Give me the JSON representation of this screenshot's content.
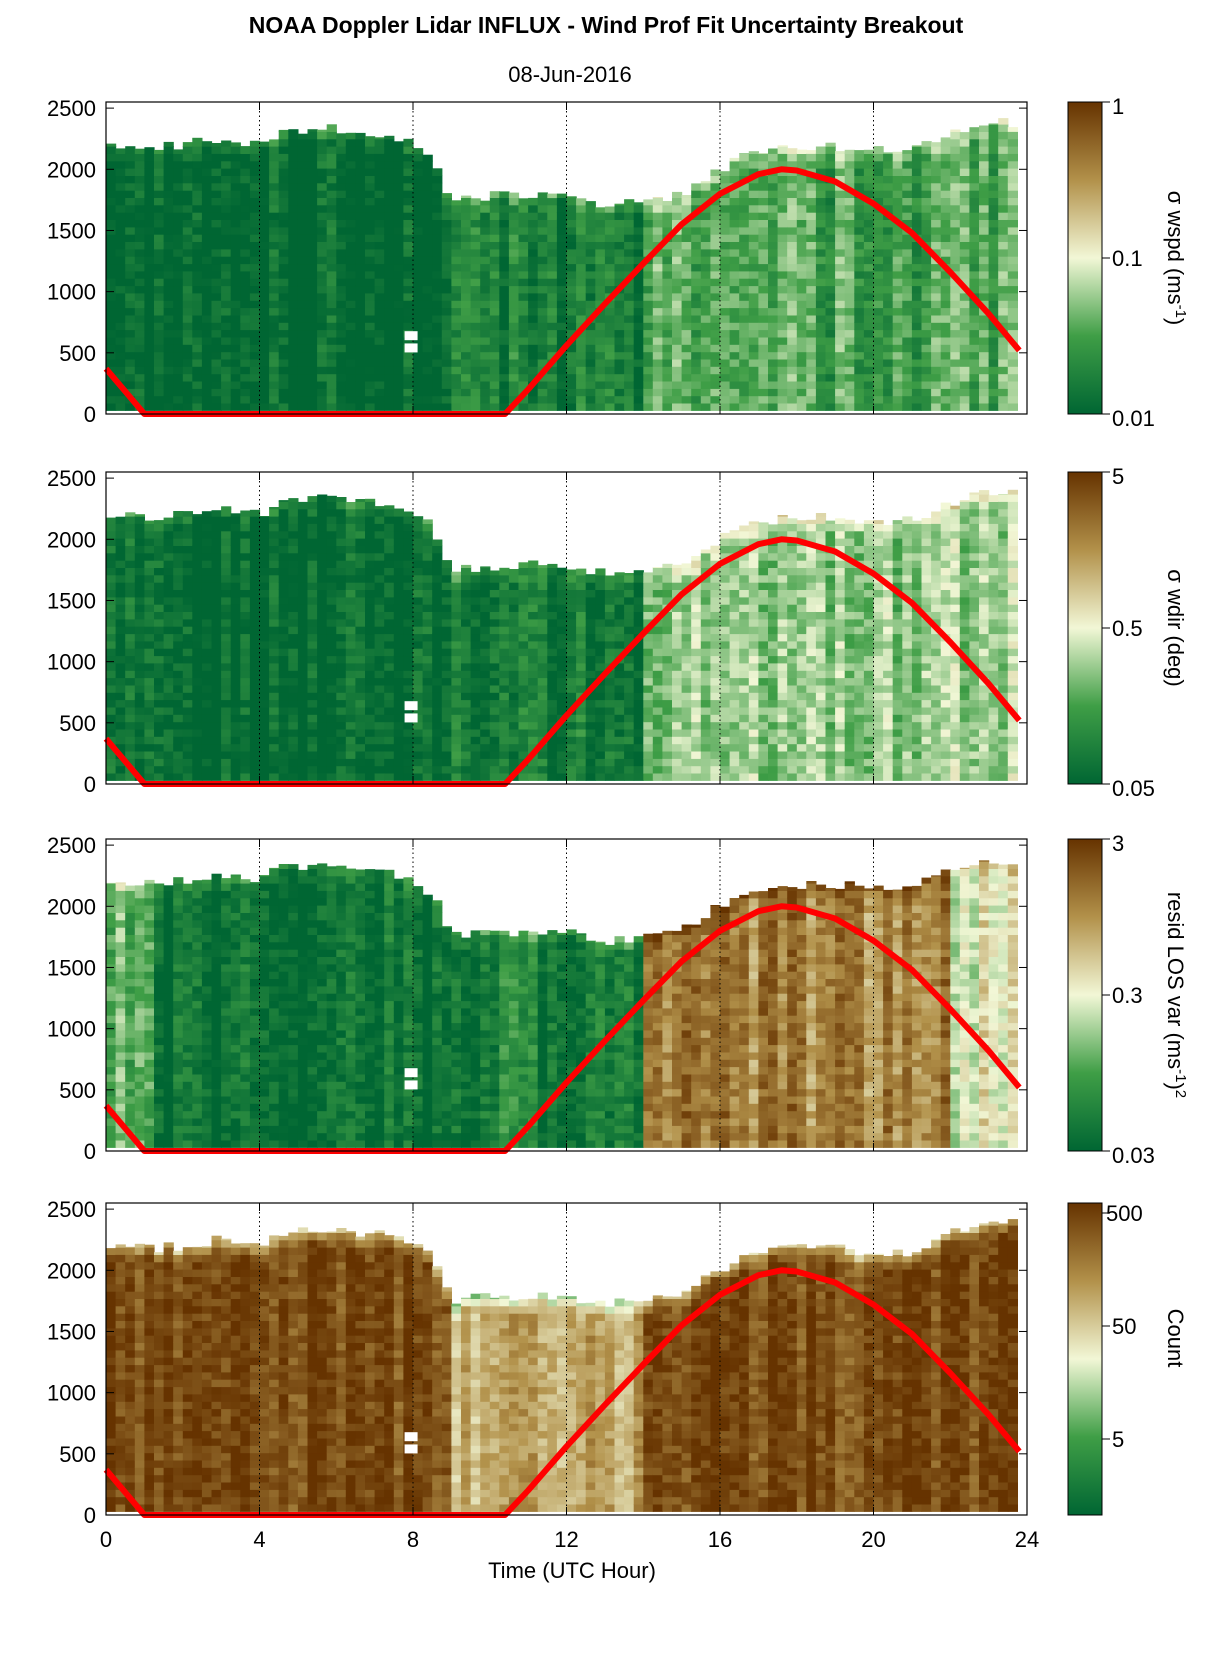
{
  "figure": {
    "title": "NOAA Doppler Lidar INFLUX - Wind Prof Fit Uncertainty Breakout",
    "subtitle": "08-Jun-2016",
    "xlabel": "Time (UTC Hour)"
  },
  "colors": {
    "low": "#006633",
    "mid": "#f2f7d6",
    "high": "#663300",
    "sun_curve": "#ff0000"
  },
  "chart_data": [
    {
      "type": "heatmap",
      "name": "wspd",
      "x_range": [
        0,
        24
      ],
      "x_ticks": [
        0,
        4,
        8,
        12,
        16,
        20,
        24
      ],
      "y_range": [
        0,
        2550
      ],
      "y_ticks": [
        0,
        500,
        1000,
        1500,
        2000,
        2500
      ],
      "colorbar": {
        "label": "σ wspd (ms-1)",
        "scale": "log",
        "range": [
          0.01,
          1
        ],
        "ticks": [
          "1",
          "0.1",
          "0.01"
        ]
      },
      "data_top_m": [
        [
          0,
          2200
        ],
        [
          1,
          2180
        ],
        [
          2,
          2200
        ],
        [
          3,
          2250
        ],
        [
          4,
          2200
        ],
        [
          4.5,
          2300
        ],
        [
          5,
          2330
        ],
        [
          6,
          2330
        ],
        [
          7,
          2300
        ],
        [
          7.5,
          2280
        ],
        [
          8,
          2200
        ],
        [
          8.5,
          2100
        ],
        [
          9,
          1760
        ],
        [
          10,
          1780
        ],
        [
          11,
          1800
        ],
        [
          12,
          1780
        ],
        [
          13,
          1720
        ],
        [
          14,
          1750
        ],
        [
          15,
          1800
        ],
        [
          16,
          2000
        ],
        [
          17,
          2150
        ],
        [
          18,
          2180
        ],
        [
          19,
          2180
        ],
        [
          20,
          2150
        ],
        [
          21,
          2150
        ],
        [
          22,
          2300
        ],
        [
          23,
          2380
        ],
        [
          23.8,
          2380
        ]
      ],
      "regimes": [
        {
          "t": [
            0,
            9
          ],
          "log10": -2.0
        },
        {
          "t": [
            9,
            14
          ],
          "log10": -1.8
        },
        {
          "t": [
            14,
            24
          ],
          "log10": -1.5
        }
      ],
      "sun_elevation_curve": [
        [
          0,
          370
        ],
        [
          1,
          0
        ],
        [
          10.4,
          0
        ],
        [
          11,
          200
        ],
        [
          12,
          560
        ],
        [
          13,
          900
        ],
        [
          14,
          1230
        ],
        [
          15,
          1550
        ],
        [
          16,
          1800
        ],
        [
          17,
          1960
        ],
        [
          17.6,
          2000
        ],
        [
          18,
          1990
        ],
        [
          19,
          1900
        ],
        [
          20,
          1720
        ],
        [
          21,
          1480
        ],
        [
          22,
          1160
        ],
        [
          23,
          820
        ],
        [
          23.8,
          520
        ]
      ]
    },
    {
      "type": "heatmap",
      "name": "wdir",
      "x_range": [
        0,
        24
      ],
      "x_ticks": [
        0,
        4,
        8,
        12,
        16,
        20,
        24
      ],
      "y_range": [
        0,
        2550
      ],
      "y_ticks": [
        0,
        500,
        1000,
        1500,
        2000,
        2500
      ],
      "colorbar": {
        "label": "σ wdir (deg)",
        "scale": "log",
        "range": [
          0.05,
          5
        ],
        "ticks": [
          "5",
          "0.5",
          "0.05"
        ]
      },
      "data_top_m": [
        [
          0,
          2200
        ],
        [
          1,
          2180
        ],
        [
          2,
          2200
        ],
        [
          3,
          2250
        ],
        [
          4,
          2200
        ],
        [
          4.5,
          2300
        ],
        [
          5,
          2330
        ],
        [
          6,
          2330
        ],
        [
          7,
          2300
        ],
        [
          7.5,
          2280
        ],
        [
          8,
          2200
        ],
        [
          8.5,
          2100
        ],
        [
          9,
          1760
        ],
        [
          10,
          1780
        ],
        [
          11,
          1800
        ],
        [
          12,
          1780
        ],
        [
          13,
          1720
        ],
        [
          14,
          1750
        ],
        [
          15,
          1800
        ],
        [
          16,
          2000
        ],
        [
          17,
          2150
        ],
        [
          18,
          2180
        ],
        [
          19,
          2180
        ],
        [
          20,
          2150
        ],
        [
          21,
          2150
        ],
        [
          22,
          2300
        ],
        [
          23,
          2380
        ],
        [
          23.8,
          2380
        ]
      ],
      "regimes": [
        {
          "t": [
            0,
            9
          ],
          "log10": -1.3
        },
        {
          "t": [
            9,
            14
          ],
          "log10": -1.15
        },
        {
          "t": [
            14,
            24
          ],
          "log10": -0.55
        }
      ],
      "sun_elevation_curve": [
        [
          0,
          370
        ],
        [
          1,
          0
        ],
        [
          10.4,
          0
        ],
        [
          11,
          200
        ],
        [
          12,
          560
        ],
        [
          13,
          900
        ],
        [
          14,
          1230
        ],
        [
          15,
          1550
        ],
        [
          16,
          1800
        ],
        [
          17,
          1960
        ],
        [
          17.6,
          2000
        ],
        [
          18,
          1990
        ],
        [
          19,
          1900
        ],
        [
          20,
          1720
        ],
        [
          21,
          1480
        ],
        [
          22,
          1160
        ],
        [
          23,
          820
        ],
        [
          23.8,
          520
        ]
      ]
    },
    {
      "type": "heatmap",
      "name": "resid",
      "x_range": [
        0,
        24
      ],
      "x_ticks": [
        0,
        4,
        8,
        12,
        16,
        20,
        24
      ],
      "y_range": [
        0,
        2550
      ],
      "y_ticks": [
        0,
        500,
        1000,
        1500,
        2000,
        2500
      ],
      "colorbar": {
        "label": "resid LOS var (ms-1)2",
        "scale": "log",
        "range": [
          0.03,
          3
        ],
        "ticks": [
          "3",
          "0.3",
          "0.03"
        ]
      },
      "data_top_m": [
        [
          0,
          2200
        ],
        [
          1,
          2180
        ],
        [
          2,
          2200
        ],
        [
          3,
          2250
        ],
        [
          4,
          2200
        ],
        [
          4.5,
          2300
        ],
        [
          5,
          2330
        ],
        [
          6,
          2330
        ],
        [
          7,
          2300
        ],
        [
          7.5,
          2280
        ],
        [
          8,
          2200
        ],
        [
          8.5,
          2100
        ],
        [
          9,
          1760
        ],
        [
          10,
          1780
        ],
        [
          11,
          1800
        ],
        [
          12,
          1780
        ],
        [
          13,
          1720
        ],
        [
          14,
          1750
        ],
        [
          15,
          1800
        ],
        [
          16,
          2000
        ],
        [
          17,
          2150
        ],
        [
          18,
          2180
        ],
        [
          19,
          2180
        ],
        [
          20,
          2150
        ],
        [
          21,
          2150
        ],
        [
          22,
          2300
        ],
        [
          23,
          2380
        ],
        [
          23.8,
          2380
        ]
      ],
      "regimes": [
        {
          "t": [
            0,
            1.2
          ],
          "log10": -0.9
        },
        {
          "t": [
            1.2,
            9
          ],
          "log10": -1.45
        },
        {
          "t": [
            9,
            14
          ],
          "log10": -1.3
        },
        {
          "t": [
            14,
            22
          ],
          "log10": 0.05
        },
        {
          "t": [
            22,
            24
          ],
          "log10": -0.5
        }
      ],
      "sun_elevation_curve": [
        [
          0,
          370
        ],
        [
          1,
          0
        ],
        [
          10.4,
          0
        ],
        [
          11,
          200
        ],
        [
          12,
          560
        ],
        [
          13,
          900
        ],
        [
          14,
          1230
        ],
        [
          15,
          1550
        ],
        [
          16,
          1800
        ],
        [
          17,
          1960
        ],
        [
          17.6,
          2000
        ],
        [
          18,
          1990
        ],
        [
          19,
          1900
        ],
        [
          20,
          1720
        ],
        [
          21,
          1480
        ],
        [
          22,
          1160
        ],
        [
          23,
          820
        ],
        [
          23.8,
          520
        ]
      ]
    },
    {
      "type": "heatmap",
      "name": "count",
      "x_range": [
        0,
        24
      ],
      "x_ticks": [
        0,
        4,
        8,
        12,
        16,
        20,
        24
      ],
      "y_range": [
        0,
        2550
      ],
      "y_ticks": [
        0,
        500,
        1000,
        1500,
        2000,
        2500
      ],
      "colorbar": {
        "label": "Count",
        "scale": "log",
        "range": [
          1.5,
          500
        ],
        "ticks": [
          "500",
          "50",
          "5"
        ]
      },
      "data_top_m": [
        [
          0,
          2200
        ],
        [
          1,
          2180
        ],
        [
          2,
          2200
        ],
        [
          3,
          2250
        ],
        [
          4,
          2200
        ],
        [
          4.5,
          2300
        ],
        [
          5,
          2330
        ],
        [
          6,
          2330
        ],
        [
          7,
          2300
        ],
        [
          7.5,
          2280
        ],
        [
          8,
          2200
        ],
        [
          8.5,
          2100
        ],
        [
          9,
          1760
        ],
        [
          10,
          1780
        ],
        [
          11,
          1800
        ],
        [
          12,
          1780
        ],
        [
          13,
          1720
        ],
        [
          14,
          1750
        ],
        [
          15,
          1800
        ],
        [
          16,
          2000
        ],
        [
          17,
          2150
        ],
        [
          18,
          2180
        ],
        [
          19,
          2180
        ],
        [
          20,
          2150
        ],
        [
          21,
          2150
        ],
        [
          22,
          2300
        ],
        [
          23,
          2380
        ],
        [
          23.8,
          2380
        ]
      ],
      "regimes": [
        {
          "t": [
            0,
            9
          ],
          "log10": 2.55
        },
        {
          "t": [
            9,
            14
          ],
          "log10": 1.9
        },
        {
          "t": [
            14,
            24
          ],
          "log10": 2.55
        }
      ],
      "sun_elevation_curve": [
        [
          0,
          370
        ],
        [
          1,
          0
        ],
        [
          10.4,
          0
        ],
        [
          11,
          200
        ],
        [
          12,
          560
        ],
        [
          13,
          900
        ],
        [
          14,
          1230
        ],
        [
          15,
          1550
        ],
        [
          16,
          1800
        ],
        [
          17,
          1960
        ],
        [
          17.6,
          2000
        ],
        [
          18,
          1990
        ],
        [
          19,
          1900
        ],
        [
          20,
          1720
        ],
        [
          21,
          1480
        ],
        [
          22,
          1160
        ],
        [
          23,
          820
        ],
        [
          23.8,
          520
        ]
      ]
    }
  ]
}
